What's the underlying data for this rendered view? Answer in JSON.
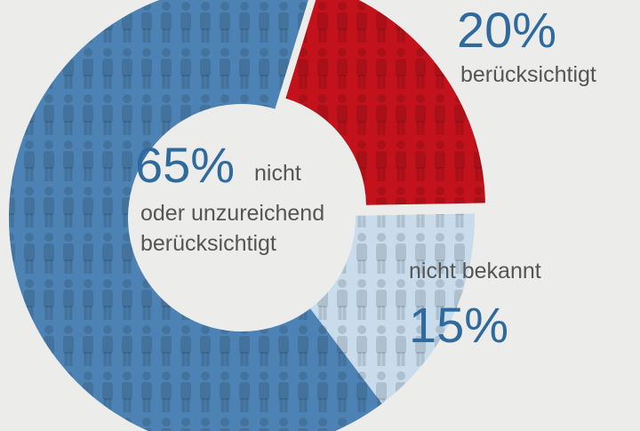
{
  "chart_data": {
    "type": "donut",
    "categories": [
      [
        "berücksichtigt"
      ],
      [
        "nicht bekannt"
      ],
      [
        "nicht",
        "oder unzureichend",
        "berücksichtigt"
      ]
    ],
    "values": [
      20,
      15,
      65
    ],
    "value_labels": [
      "20%",
      "15%",
      "65%"
    ],
    "colors": [
      "#c3121c",
      "#c8dcec",
      "#4d83b4"
    ]
  }
}
